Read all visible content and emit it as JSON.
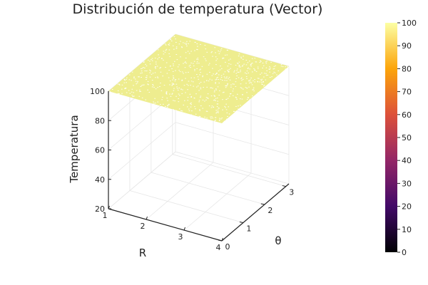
{
  "chart_data": {
    "type": "surface",
    "title": "Distribución de temperatura (Vector)",
    "xlabel": "R",
    "ylabel": "θ",
    "zlabel": "Temperatura",
    "xlim": [
      1,
      4
    ],
    "ylim": [
      0,
      3.14
    ],
    "zlim": [
      20,
      100
    ],
    "x_ticks": [
      "1",
      "2",
      "3",
      "4"
    ],
    "y_ticks": [
      "0",
      "1",
      "2",
      "3"
    ],
    "z_ticks": [
      "20",
      "40",
      "60",
      "80",
      "100"
    ],
    "surface_value": 100,
    "grid": true,
    "colorbar": {
      "min": 0,
      "max": 100,
      "ticks": [
        "0",
        "10",
        "20",
        "30",
        "40",
        "50",
        "60",
        "70",
        "80",
        "90",
        "100"
      ],
      "colormap": [
        "#000004",
        "#420a68",
        "#932667",
        "#dd513a",
        "#fca50a",
        "#fcffa4"
      ]
    },
    "surface_color": "#eeed8f"
  }
}
